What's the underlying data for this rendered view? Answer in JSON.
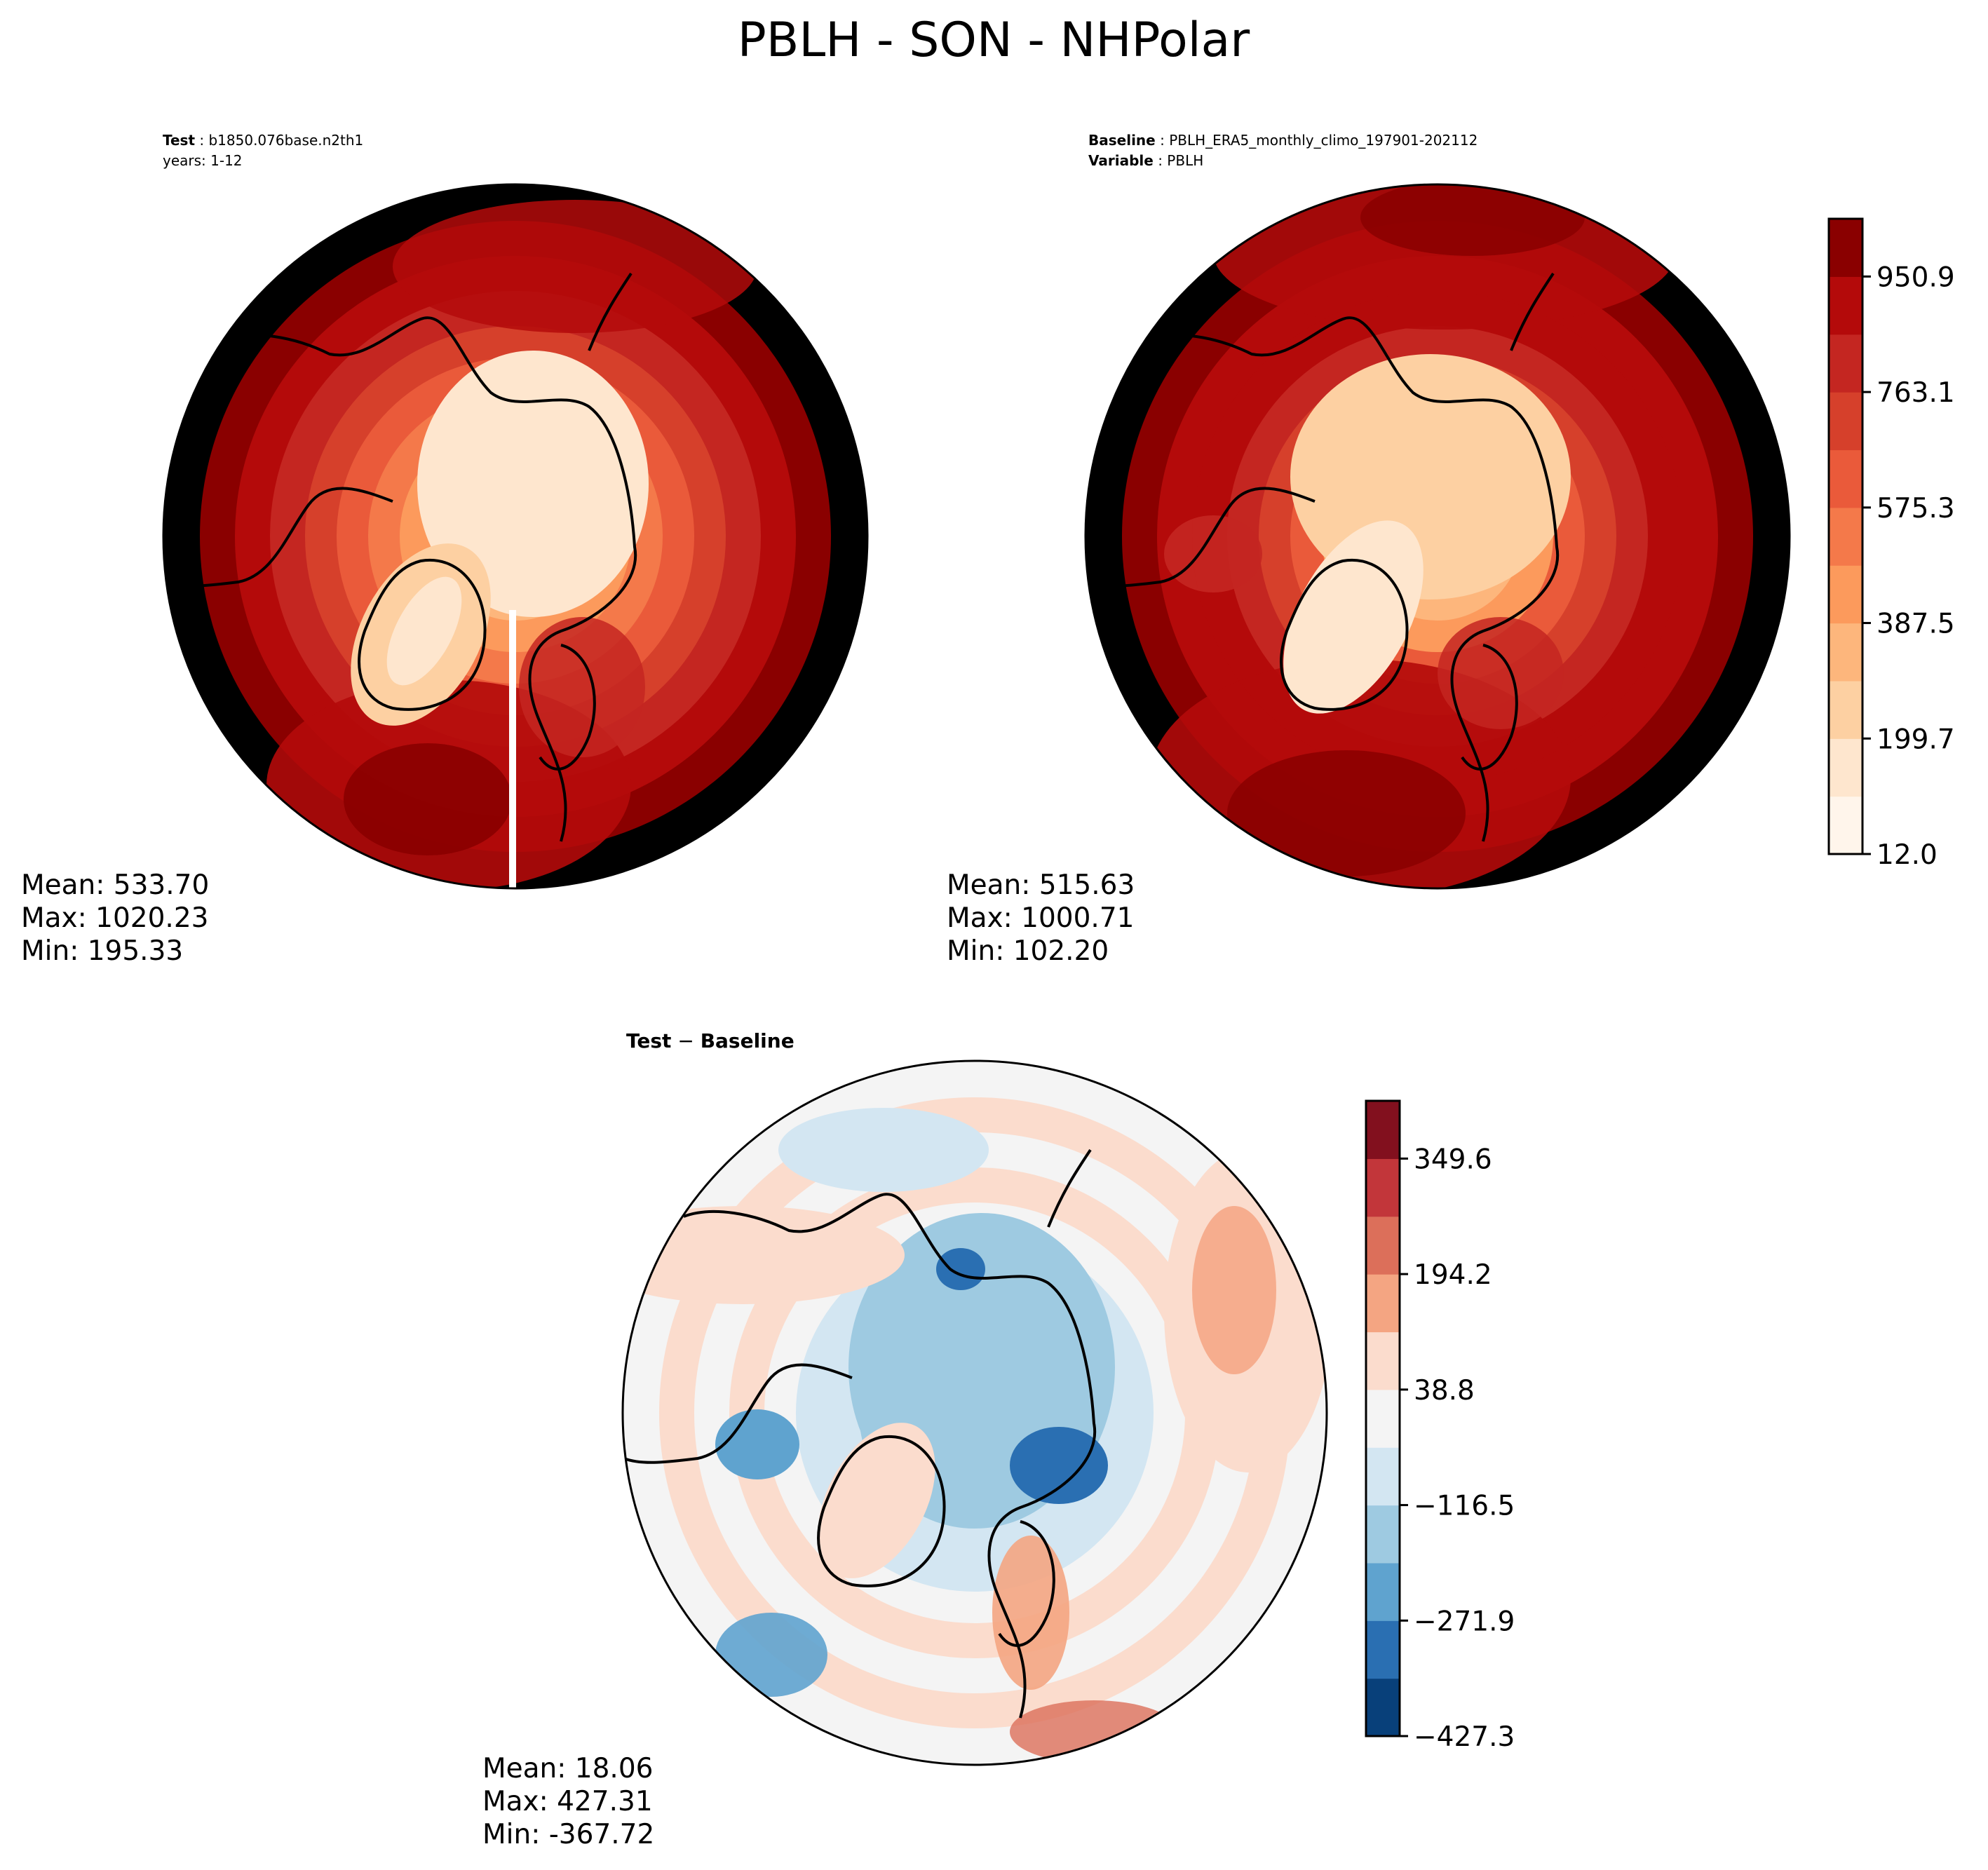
{
  "figure": {
    "title": "PBLH - SON - NHPolar"
  },
  "chart_data": [
    {
      "type": "heatmap",
      "panel": "test",
      "projection": "north-polar-stereographic",
      "header": {
        "label": "Test",
        "value": "b1850.076base.n2th1",
        "line2": "years: 1-12"
      },
      "stats": {
        "mean": "Mean: 533.70",
        "max": "Max: 1020.23",
        "min": "Min: 195.33"
      },
      "palette": "OrRd",
      "rings_level_index": [
        11,
        10,
        9,
        8,
        7,
        6,
        5,
        4,
        3,
        2
      ]
    },
    {
      "type": "heatmap",
      "panel": "baseline",
      "projection": "north-polar-stereographic",
      "header": {
        "label": "Baseline",
        "value": "PBLH_ERA5_monthly_climo_197901-202112",
        "label2": "Variable",
        "value2": "PBLH"
      },
      "stats": {
        "mean": "Mean: 515.63",
        "max": "Max: 1000.71",
        "min": "Min: 102.20"
      },
      "palette": "OrRd",
      "rings_level_index": [
        11,
        10,
        9,
        9,
        8,
        7,
        6,
        4,
        3,
        2
      ]
    },
    {
      "type": "heatmap",
      "panel": "difference",
      "projection": "north-polar-stereographic",
      "header": {
        "label": "Test",
        "sep": " − ",
        "label2": "Baseline"
      },
      "stats": {
        "mean": "Mean: 18.06",
        "max": "Max: 427.31",
        "min": "Min: -367.72"
      },
      "palette": "RdBu_r",
      "rings_level_index": [
        5,
        6,
        5,
        6,
        5,
        4,
        4,
        3,
        2,
        2
      ]
    }
  ],
  "colorbars": {
    "main": {
      "levels": 11,
      "ticks": [
        "12.0",
        "199.7",
        "387.5",
        "575.3",
        "763.1",
        "950.9"
      ],
      "tick_level_positions": [
        0,
        2,
        4,
        6,
        8,
        10
      ],
      "colors": [
        "#fff5eb",
        "#fee6ce",
        "#fdd0a2",
        "#fdb67c",
        "#fc9a5c",
        "#f4794a",
        "#ea5a3a",
        "#d6402b",
        "#c42621",
        "#b40a0a",
        "#8a0000"
      ]
    },
    "diff": {
      "levels": 11,
      "ticks": [
        "−427.3",
        "−271.9",
        "−116.5",
        "38.8",
        "194.2",
        "349.6"
      ],
      "tick_level_positions": [
        0,
        2,
        4,
        6,
        8,
        10
      ],
      "colors": [
        "#08407a",
        "#2a6fb2",
        "#5fa3cf",
        "#9ecae1",
        "#d3e6f2",
        "#f4f4f4",
        "#fbdccd",
        "#f4a582",
        "#dc6f5a",
        "#c2363a",
        "#82101e"
      ]
    }
  }
}
